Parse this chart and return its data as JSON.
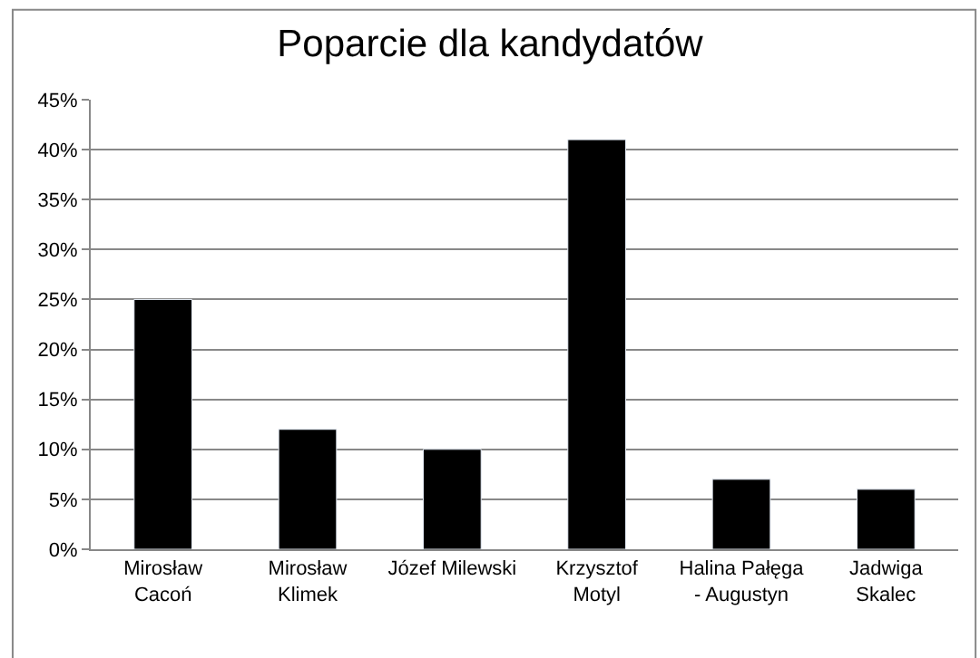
{
  "chart_data": {
    "type": "bar",
    "title": "Poparcie dla kandydatów",
    "categories": [
      "Mirosław\nCacoń",
      "Mirosław\nKlimek",
      "Józef Milewski",
      "Krzysztof\nMotyl",
      "Halina Pałęga\n- Augustyn",
      "Jadwiga\nSkalec"
    ],
    "values": [
      25,
      12,
      10,
      41,
      7,
      6
    ],
    "color": "#000000",
    "ylim": [
      0,
      45
    ],
    "yticks": [
      {
        "value": 0,
        "label": "0%"
      },
      {
        "value": 5,
        "label": "5%"
      },
      {
        "value": 10,
        "label": "10%"
      },
      {
        "value": 15,
        "label": "15%"
      },
      {
        "value": 20,
        "label": "20%"
      },
      {
        "value": 25,
        "label": "25%"
      },
      {
        "value": 30,
        "label": "30%"
      },
      {
        "value": 35,
        "label": "35%"
      },
      {
        "value": 40,
        "label": "40%"
      },
      {
        "value": 45,
        "label": "45%"
      }
    ],
    "grid": "y",
    "legend": false
  }
}
